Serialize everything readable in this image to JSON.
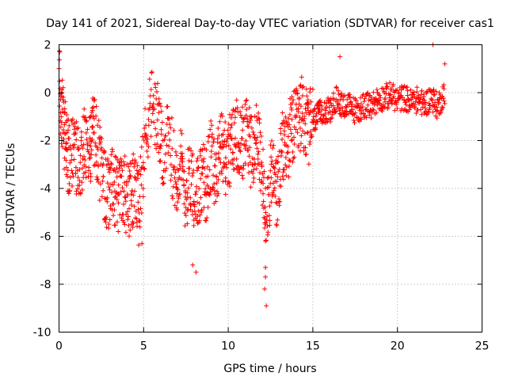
{
  "chart_data": {
    "type": "scatter",
    "title": "Day 141 of 2021, Sidereal Day-to-day VTEC variation (SDTVAR) for receiver cas1",
    "xlabel": "GPS time / hours",
    "ylabel": "SDTVAR / TECUs",
    "xlim": [
      0,
      25
    ],
    "ylim": [
      -10,
      2
    ],
    "xticks": [
      0,
      5,
      10,
      15,
      20,
      25
    ],
    "yticks": [
      -10,
      -8,
      -6,
      -4,
      -2,
      0,
      2
    ],
    "xtick_labels": [
      "0",
      "5",
      "10",
      "15",
      "20",
      "25"
    ],
    "ytick_labels": [
      "-10",
      "-8",
      "-6",
      "-4",
      "-2",
      "0",
      "2"
    ],
    "grid": true,
    "marker": "plus",
    "series_color": "#ff0000",
    "series": [
      {
        "name": "SDTVAR",
        "trend": [
          [
            0.0,
            0.5
          ],
          [
            0.2,
            -1.0
          ],
          [
            0.4,
            -2.2
          ],
          [
            0.6,
            -2.8
          ],
          [
            0.9,
            -2.6
          ],
          [
            1.2,
            -2.9
          ],
          [
            1.5,
            -2.2
          ],
          [
            1.8,
            -2.7
          ],
          [
            2.0,
            -1.2
          ],
          [
            2.3,
            -2.5
          ],
          [
            2.6,
            -3.8
          ],
          [
            2.9,
            -4.2
          ],
          [
            3.2,
            -3.9
          ],
          [
            3.5,
            -4.4
          ],
          [
            3.8,
            -4.0
          ],
          [
            4.1,
            -4.6
          ],
          [
            4.4,
            -4.1
          ],
          [
            4.7,
            -4.8
          ],
          [
            5.0,
            -2.5
          ],
          [
            5.4,
            -0.4
          ],
          [
            5.8,
            -1.0
          ],
          [
            6.1,
            -2.6
          ],
          [
            6.5,
            -2.0
          ],
          [
            6.9,
            -3.5
          ],
          [
            7.2,
            -3.0
          ],
          [
            7.5,
            -4.2
          ],
          [
            7.8,
            -3.4
          ],
          [
            8.1,
            -4.4
          ],
          [
            8.4,
            -3.6
          ],
          [
            8.7,
            -3.9
          ],
          [
            9.0,
            -2.6
          ],
          [
            9.3,
            -3.5
          ],
          [
            9.6,
            -2.1
          ],
          [
            9.9,
            -2.9
          ],
          [
            10.2,
            -2.2
          ],
          [
            10.5,
            -1.6
          ],
          [
            10.8,
            -2.2
          ],
          [
            11.1,
            -1.4
          ],
          [
            11.4,
            -2.6
          ],
          [
            11.7,
            -1.8
          ],
          [
            12.0,
            -3.6
          ],
          [
            12.3,
            -4.8
          ],
          [
            12.6,
            -3.2
          ],
          [
            12.9,
            -4.3
          ],
          [
            13.2,
            -2.4
          ],
          [
            13.5,
            -2.1
          ],
          [
            13.8,
            -1.5
          ],
          [
            14.1,
            -1.4
          ],
          [
            14.4,
            -0.7
          ],
          [
            14.7,
            -1.6
          ],
          [
            15.0,
            -1.2
          ],
          [
            15.3,
            -1.0
          ],
          [
            15.6,
            -0.7
          ],
          [
            16.0,
            -0.8
          ],
          [
            16.4,
            -0.3
          ],
          [
            16.8,
            -0.5
          ],
          [
            17.2,
            -0.6
          ],
          [
            17.6,
            -0.8
          ],
          [
            18.0,
            -0.5
          ],
          [
            18.4,
            -0.6
          ],
          [
            18.8,
            -0.3
          ],
          [
            19.2,
            -0.2
          ],
          [
            19.6,
            -0.1
          ],
          [
            20.0,
            -0.3
          ],
          [
            20.4,
            -0.2
          ],
          [
            20.8,
            -0.4
          ],
          [
            21.2,
            -0.3
          ],
          [
            21.6,
            -0.5
          ],
          [
            22.0,
            -0.2
          ],
          [
            22.4,
            -0.6
          ],
          [
            22.8,
            0.1
          ]
        ],
        "notable_points": [
          [
            0.05,
            1.7
          ],
          [
            0.0,
            1.0
          ],
          [
            16.6,
            1.5
          ],
          [
            22.1,
            2.0
          ],
          [
            22.8,
            1.2
          ],
          [
            12.2,
            -6.2
          ],
          [
            12.2,
            -7.3
          ],
          [
            12.2,
            -7.7
          ],
          [
            12.15,
            -8.2
          ],
          [
            12.25,
            -8.9
          ],
          [
            8.1,
            -7.5
          ],
          [
            3.5,
            -5.8
          ],
          [
            4.9,
            -6.3
          ],
          [
            7.9,
            -7.2
          ]
        ]
      }
    ]
  }
}
